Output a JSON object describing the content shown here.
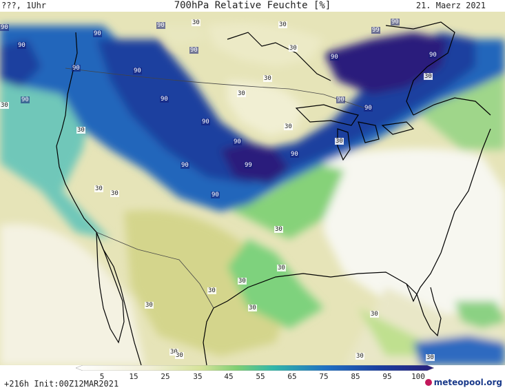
{
  "header": {
    "left": "???, 1Uhr",
    "title": "700hPa Relative Feuchte [%]",
    "date": "21. Maerz 2021"
  },
  "colors": {
    "land_very_dry": "#ffffff",
    "dry": "#f2f0d9",
    "mid_low": "#d6e39a",
    "green": "#7fcf73",
    "teal": "#32b7a8",
    "moist": "#1f6fc2",
    "very_moist": "#1a3d9e",
    "saturated": "#291f7a",
    "coastline": "#000000"
  },
  "contour_labels": [
    {
      "text": "90",
      "tone": "dark",
      "pos": "north-west"
    },
    {
      "text": "90",
      "tone": "dark",
      "pos": "north"
    },
    {
      "text": "90",
      "tone": "dark",
      "pos": "north-west-inner"
    },
    {
      "text": "90",
      "tone": "dark",
      "pos": "pacific-north-west"
    },
    {
      "text": "90",
      "tone": "dark",
      "pos": "canada-west"
    },
    {
      "text": "90",
      "tone": "dark",
      "pos": "canada-central"
    },
    {
      "text": "90",
      "tone": "dark",
      "pos": "canada-north"
    },
    {
      "text": "90",
      "tone": "dark",
      "pos": "hudson"
    },
    {
      "text": "99",
      "tone": "dark",
      "pos": "hudson-east"
    },
    {
      "text": "90",
      "tone": "dark",
      "pos": "quebec"
    },
    {
      "text": "90",
      "tone": "dark",
      "pos": "labrador"
    },
    {
      "text": "90",
      "tone": "dark",
      "pos": "ontario"
    },
    {
      "text": "90",
      "tone": "dark",
      "pos": "great-lakes"
    },
    {
      "text": "90",
      "tone": "dark",
      "pos": "dakota"
    },
    {
      "text": "90",
      "tone": "dark",
      "pos": "minnesota"
    },
    {
      "text": "99",
      "tone": "dark",
      "pos": "midwest"
    },
    {
      "text": "90",
      "tone": "dark",
      "pos": "iowa"
    },
    {
      "text": "90",
      "tone": "dark",
      "pos": "wyoming"
    },
    {
      "text": "90",
      "tone": "dark",
      "pos": "colorado"
    },
    {
      "text": "90",
      "tone": "dark",
      "pos": "montana"
    },
    {
      "text": "90",
      "tone": "dark",
      "pos": "idaho"
    },
    {
      "text": "30",
      "tone": "light",
      "pos": "pacific"
    },
    {
      "text": "30",
      "tone": "light",
      "pos": "canada-dry-1"
    },
    {
      "text": "30",
      "tone": "light",
      "pos": "canada-dry-2"
    },
    {
      "text": "30",
      "tone": "light",
      "pos": "canada-dry-3"
    },
    {
      "text": "30",
      "tone": "light",
      "pos": "prairie"
    },
    {
      "text": "30",
      "tone": "light",
      "pos": "lake"
    },
    {
      "text": "30",
      "tone": "light",
      "pos": "atlantic"
    },
    {
      "text": "30",
      "tone": "light",
      "pos": "nevada"
    },
    {
      "text": "30",
      "tone": "light",
      "pos": "california"
    },
    {
      "text": "30",
      "tone": "light",
      "pos": "oregon"
    },
    {
      "text": "30",
      "tone": "light",
      "pos": "plains"
    },
    {
      "text": "30",
      "tone": "light",
      "pos": "texas-n"
    },
    {
      "text": "30",
      "tone": "light",
      "pos": "arizona"
    },
    {
      "text": "30",
      "tone": "light",
      "pos": "new-mexico"
    },
    {
      "text": "30",
      "tone": "light",
      "pos": "texas"
    },
    {
      "text": "30",
      "tone": "light",
      "pos": "mexico"
    },
    {
      "text": "30",
      "tone": "light",
      "pos": "gulf"
    },
    {
      "text": "30",
      "tone": "light",
      "pos": "baja"
    },
    {
      "text": "30",
      "tone": "light",
      "pos": "baja-2"
    },
    {
      "text": "30",
      "tone": "light",
      "pos": "pacific-s"
    },
    {
      "text": "30",
      "tone": "light",
      "pos": "caribbean"
    },
    {
      "text": "30",
      "tone": "light",
      "pos": "mexico-s"
    },
    {
      "text": "30",
      "tone": "light",
      "pos": "north-edge"
    }
  ],
  "colorbar": {
    "ticks": [
      "5",
      "15",
      "25",
      "35",
      "45",
      "55",
      "65",
      "75",
      "85",
      "95",
      "100"
    ]
  },
  "footer": {
    "run": "+216h Init:00Z12MAR2021",
    "brand": "meteopool.org"
  }
}
